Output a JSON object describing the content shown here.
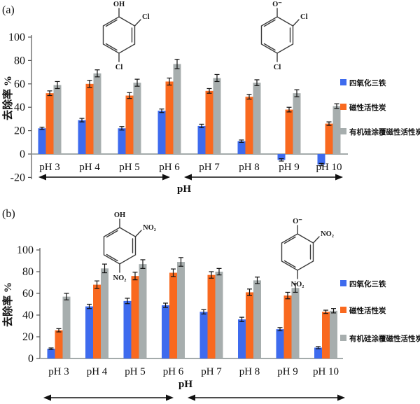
{
  "figure": {
    "panel_a_label": "(a)",
    "panel_b_label": "(b)",
    "ylabel": "去除率 %",
    "xlabel": "pH"
  },
  "legend": {
    "items": [
      {
        "label": "四氧化三铁",
        "color": "#3E6BEE",
        "icon": "blue-square-swatch"
      },
      {
        "label": "磁性活性炭",
        "color": "#F9691F",
        "icon": "orange-square-swatch"
      },
      {
        "label": "有机硅涂覆磁性活性炭",
        "color": "#A7AEAE",
        "icon": "gray-square-swatch"
      }
    ]
  },
  "structures": {
    "a_left": {
      "top": "OH",
      "ortho": "Cl",
      "para": "Cl"
    },
    "a_right": {
      "top": "O⁻",
      "ortho": "Cl",
      "para": "Cl"
    },
    "b_left": {
      "top": "OH",
      "ortho": "NO₂",
      "para": "NO₂"
    },
    "b_right": {
      "top": "O⁻",
      "ortho": "NO₂",
      "para": "NO₂"
    }
  },
  "chart_data": [
    {
      "panel": "a",
      "type": "bar",
      "title": "",
      "xlabel": "pH",
      "ylabel": "去除率 %",
      "categories": [
        "pH 3",
        "pH 4",
        "pH 5",
        "pH 6",
        "pH 7",
        "pH 8",
        "pH 9",
        "pH 10"
      ],
      "ylim": [
        -20,
        100
      ],
      "yticks": [
        100,
        80,
        60,
        40,
        20,
        0,
        -20
      ],
      "grid": false,
      "legend_position": "right",
      "series": [
        {
          "name": "四氧化三铁",
          "color": "#3E6BEE",
          "values": [
            22,
            29,
            22,
            37,
            24,
            11,
            -5,
            -9
          ],
          "errors": [
            1,
            1.5,
            1.5,
            1.5,
            1.5,
            1,
            1,
            1
          ]
        },
        {
          "name": "磁性活性炭",
          "color": "#F9691F",
          "values": [
            52,
            60,
            50,
            62,
            54,
            49,
            38,
            26
          ],
          "errors": [
            2,
            3,
            2.5,
            3,
            2,
            2,
            2,
            1.5
          ]
        },
        {
          "name": "有机硅涂覆磁性活性炭",
          "color": "#A7AEAE",
          "values": [
            59,
            69,
            61,
            77,
            65,
            61,
            52,
            41
          ],
          "errors": [
            3,
            3,
            3,
            4,
            3,
            2.5,
            3,
            2
          ]
        }
      ]
    },
    {
      "panel": "b",
      "type": "bar",
      "title": "",
      "xlabel": "pH",
      "ylabel": "去除率 %",
      "categories": [
        "pH 3",
        "pH 4",
        "pH 5",
        "pH 6",
        "pH 7",
        "pH 8",
        "pH 9",
        "pH 10"
      ],
      "ylim": [
        0,
        100
      ],
      "yticks": [
        100,
        80,
        60,
        40,
        20,
        0
      ],
      "grid": false,
      "legend_position": "right",
      "series": [
        {
          "name": "四氧化三铁",
          "color": "#3E6BEE",
          "values": [
            9,
            48,
            53,
            49,
            43,
            36,
            27,
            10
          ],
          "errors": [
            0.7,
            2,
            2.5,
            2,
            2,
            2,
            1.5,
            1
          ]
        },
        {
          "name": "磁性活性炭",
          "color": "#F9691F",
          "values": [
            26,
            68,
            76,
            79,
            77,
            61,
            58,
            43
          ],
          "errors": [
            1.5,
            3.5,
            3.5,
            3.5,
            3,
            3,
            3,
            1.5
          ]
        },
        {
          "name": "有机硅涂覆磁性活性炭",
          "color": "#A7AEAE",
          "values": [
            57,
            83,
            87,
            89,
            80,
            72,
            65,
            44
          ],
          "errors": [
            3,
            4,
            4,
            4,
            3,
            3,
            4,
            2
          ]
        }
      ]
    }
  ]
}
